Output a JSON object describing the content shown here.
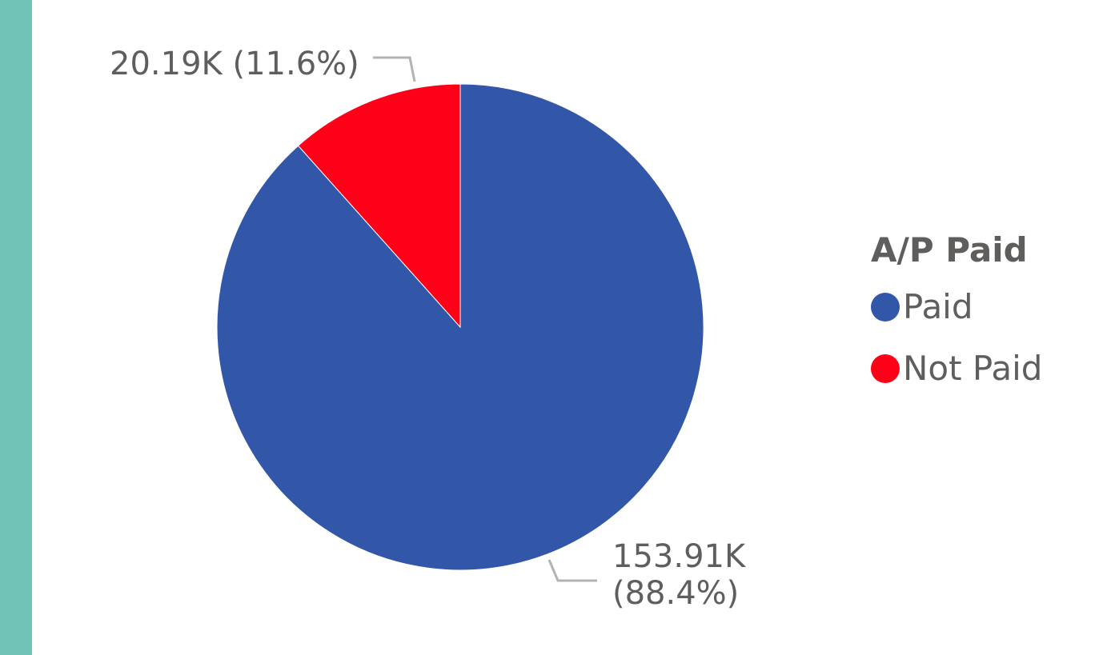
{
  "colors": {
    "accent_bar": "#70c2b4",
    "leader_line": "#b3b3b3"
  },
  "chart_data": {
    "type": "pie",
    "legend_title": "A/P Paid",
    "legend_position": "right",
    "slices": [
      {
        "label": "Paid",
        "value": 153.91,
        "value_label": "153.91K",
        "percent_label": "(88.4%)",
        "color": "#3357a8"
      },
      {
        "label": "Not Paid",
        "value": 20.19,
        "value_label": "20.19K",
        "percent_label": "(11.6%)",
        "color": "#ff0019"
      }
    ]
  }
}
